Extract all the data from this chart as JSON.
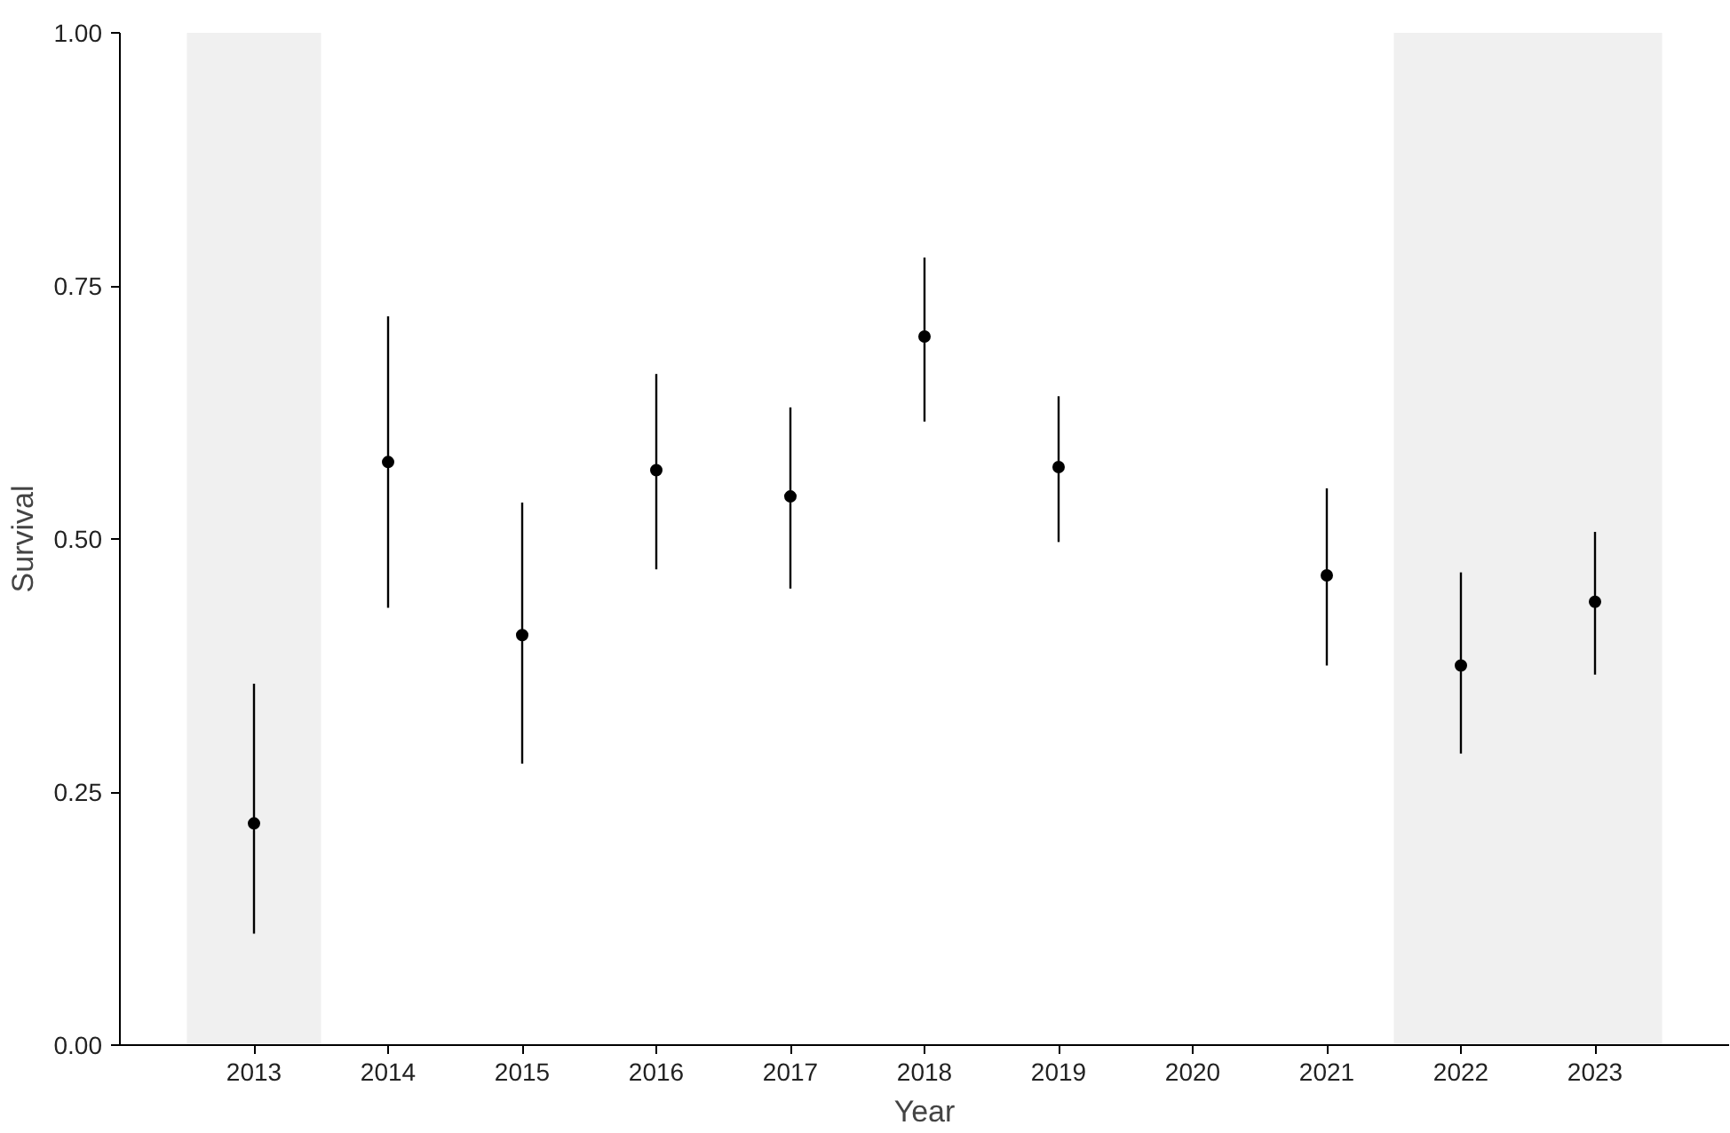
{
  "chart_data": {
    "type": "scatter",
    "xlabel": "Year",
    "ylabel": "Survival",
    "x": [
      2013,
      2014,
      2015,
      2016,
      2017,
      2018,
      2019,
      2020,
      2021,
      2022,
      2023
    ],
    "values": [
      0.219,
      0.576,
      0.405,
      0.568,
      0.542,
      0.7,
      0.571,
      null,
      0.464,
      0.375,
      0.438
    ],
    "errors": [
      [
        0.11,
        0.357
      ],
      [
        0.432,
        0.72
      ],
      [
        0.278,
        0.536
      ],
      [
        0.47,
        0.663
      ],
      [
        0.451,
        0.63
      ],
      [
        0.616,
        0.778
      ],
      [
        0.497,
        0.641
      ],
      null,
      [
        0.375,
        0.55
      ],
      [
        0.288,
        0.467
      ],
      [
        0.366,
        0.507
      ]
    ],
    "color": "#000000",
    "marker": "circle",
    "xlim": [
      2012,
      2024
    ],
    "xticks": [
      2013,
      2014,
      2015,
      2016,
      2017,
      2018,
      2019,
      2020,
      2021,
      2022,
      2023
    ],
    "ylim": [
      0,
      1
    ],
    "yticks": [
      {
        "value": 0,
        "label": "0.00"
      },
      {
        "value": 0.25,
        "label": "0.25"
      },
      {
        "value": 0.5,
        "label": "0.50"
      },
      {
        "value": 0.75,
        "label": "0.75"
      },
      {
        "value": 1,
        "label": "1.00"
      }
    ],
    "bands": [
      {
        "axis": "x",
        "from": 2012.5,
        "to": 2013.5,
        "color": "#f0f0f0"
      },
      {
        "axis": "x",
        "from": 2021.5,
        "to": 2023.5,
        "color": "#f0f0f0"
      }
    ],
    "grid": false
  }
}
